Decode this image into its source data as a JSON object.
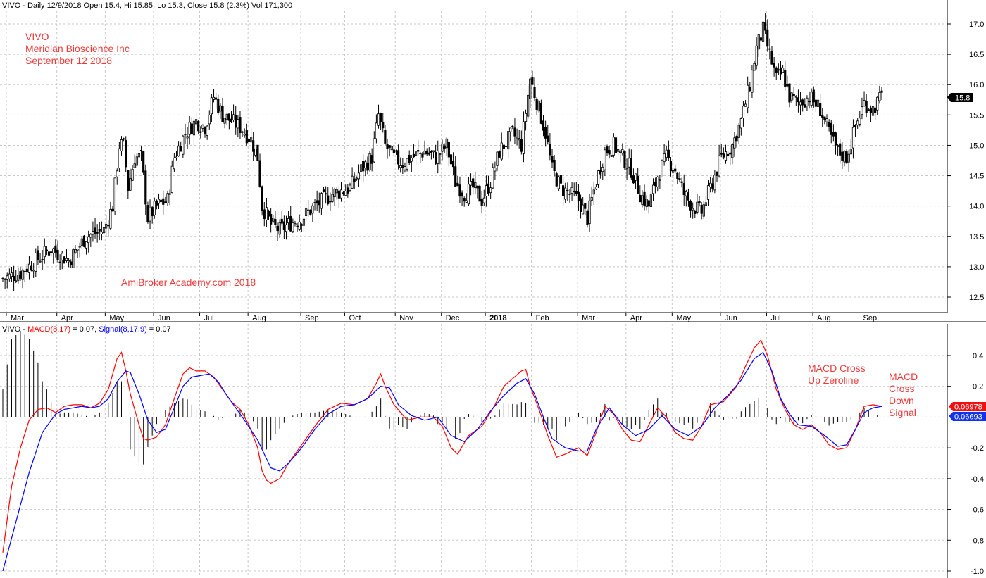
{
  "price_panel": {
    "header": "VIVO - Daily 12/9/2018 Open 15.4, Hi 15.85, Lo 15.3, Close 15.8 (2.3%) Vol 171,300",
    "annotations": {
      "ticker": "VIVO",
      "company": "Meridian Bioscience Inc",
      "date": "September 12 2018",
      "watermark": "AmiBroker Academy.com  2018"
    },
    "last_price_badge": "15.8"
  },
  "macd_panel": {
    "header_prefix": "VIVO - ",
    "macd_label": "MACD(8,17)",
    "macd_value": " = 0.07, ",
    "signal_label": "Signal(8,17,9)",
    "signal_value": " = 0.07",
    "annotations": {
      "cross_up_line1": "MACD Cross",
      "cross_up_line2": "Up Zeroline",
      "cross_down_line1": "MACD",
      "cross_down_line2": "Cross",
      "cross_down_line3": "Down",
      "cross_down_line4": "Signal"
    },
    "macd_badge": "0.06978",
    "signal_badge": "0.06693"
  },
  "colors": {
    "annotation": "#ee3a3a",
    "macd_line": "#ff0000",
    "signal_line": "#0000ff",
    "grid": "#c8c8c8",
    "candle": "#000000"
  },
  "chart_data": [
    {
      "type": "candlestick",
      "title": "VIVO - Daily 12/9/2018 Open 15.4, Hi 15.85, Lo 15.3, Close 15.8 (2.3%) Vol 171,300",
      "ylim": [
        12.2,
        17.2
      ],
      "y_ticks": [
        12.5,
        13.0,
        13.5,
        14.0,
        14.5,
        15.0,
        15.5,
        16.0,
        16.5,
        17.0
      ],
      "y_tick_labels": [
        "12.5",
        "13.0",
        "13.5",
        "14.0",
        "14.5",
        "15.0",
        "15.5",
        "16.0",
        "16.5",
        "17.0"
      ],
      "x_labels": [
        "Mar",
        "Apr",
        "May",
        "Jun",
        "Jul",
        "Aug",
        "Sep",
        "Oct",
        "Nov",
        "Dec",
        "2018",
        "Feb",
        "Mar",
        "Apr",
        "May",
        "Jun",
        "Jul",
        "Aug",
        "Sep"
      ],
      "x_label_bars": [
        8,
        31,
        53,
        75,
        96,
        118,
        142,
        162,
        185,
        206,
        226,
        247,
        268,
        290,
        311,
        333,
        354,
        375,
        396
      ],
      "close_path": [
        [
          0,
          12.8
        ],
        [
          8,
          12.9
        ],
        [
          15,
          13.1
        ],
        [
          22,
          13.3
        ],
        [
          30,
          13.1
        ],
        [
          38,
          13.5
        ],
        [
          46,
          13.6
        ],
        [
          50,
          14.0
        ],
        [
          53,
          15.0
        ],
        [
          55,
          15.0
        ],
        [
          57,
          14.3
        ],
        [
          60,
          14.8
        ],
        [
          63,
          14.8
        ],
        [
          66,
          13.8
        ],
        [
          70,
          14.0
        ],
        [
          75,
          14.1
        ],
        [
          78,
          14.8
        ],
        [
          83,
          15.2
        ],
        [
          88,
          15.4
        ],
        [
          92,
          15.3
        ],
        [
          96,
          15.8
        ],
        [
          100,
          15.5
        ],
        [
          104,
          15.4
        ],
        [
          108,
          15.3
        ],
        [
          113,
          15.1
        ],
        [
          116,
          14.8
        ],
        [
          118,
          14.0
        ],
        [
          122,
          13.7
        ],
        [
          126,
          13.6
        ],
        [
          130,
          13.7
        ],
        [
          136,
          13.8
        ],
        [
          142,
          14.0
        ],
        [
          150,
          14.2
        ],
        [
          158,
          14.3
        ],
        [
          163,
          14.6
        ],
        [
          168,
          14.8
        ],
        [
          171,
          15.5
        ],
        [
          174,
          15.0
        ],
        [
          178,
          14.8
        ],
        [
          182,
          14.7
        ],
        [
          186,
          14.8
        ],
        [
          192,
          14.9
        ],
        [
          197,
          14.8
        ],
        [
          202,
          15.0
        ],
        [
          206,
          14.4
        ],
        [
          210,
          14.2
        ],
        [
          214,
          14.3
        ],
        [
          218,
          14.1
        ],
        [
          222,
          14.4
        ],
        [
          226,
          14.9
        ],
        [
          232,
          15.2
        ],
        [
          236,
          15.0
        ],
        [
          240,
          16.1
        ],
        [
          244,
          15.6
        ],
        [
          247,
          15.2
        ],
        [
          250,
          14.6
        ],
        [
          254,
          14.3
        ],
        [
          258,
          14.2
        ],
        [
          262,
          14.1
        ],
        [
          266,
          13.8
        ],
        [
          270,
          14.4
        ],
        [
          274,
          14.9
        ],
        [
          278,
          15.0
        ],
        [
          282,
          14.8
        ],
        [
          286,
          14.6
        ],
        [
          290,
          14.2
        ],
        [
          294,
          14.0
        ],
        [
          298,
          14.5
        ],
        [
          302,
          14.8
        ],
        [
          306,
          14.6
        ],
        [
          310,
          14.2
        ],
        [
          314,
          14.0
        ],
        [
          318,
          13.9
        ],
        [
          323,
          14.4
        ],
        [
          327,
          14.8
        ],
        [
          332,
          15.0
        ],
        [
          336,
          15.4
        ],
        [
          340,
          16.0
        ],
        [
          343,
          16.6
        ],
        [
          346,
          16.9
        ],
        [
          349,
          16.5
        ],
        [
          352,
          16.1
        ],
        [
          355,
          16.2
        ],
        [
          358,
          15.8
        ],
        [
          362,
          15.7
        ],
        [
          367,
          15.8
        ],
        [
          372,
          15.6
        ],
        [
          376,
          15.2
        ],
        [
          380,
          14.9
        ],
        [
          384,
          14.8
        ],
        [
          388,
          15.3
        ],
        [
          392,
          15.7
        ],
        [
          396,
          15.6
        ],
        [
          400,
          15.8
        ]
      ]
    },
    {
      "type": "line",
      "title": "VIVO - MACD(8,17) = 0.07, Signal(8,17,9) = 0.07",
      "ylim": [
        -1.05,
        0.6
      ],
      "y_ticks": [
        -1.0,
        -0.8,
        -0.6,
        -0.4,
        -0.2,
        0.2,
        0.4
      ],
      "y_tick_labels": [
        "-1.0",
        "-0.8",
        "-0.6",
        "-0.4",
        "-0.2",
        "0.2",
        "0.4"
      ],
      "series": [
        {
          "name": "MACD(8,17)",
          "color": "#ff0000",
          "points": [
            [
              0,
              -0.88
            ],
            [
              4,
              -0.45
            ],
            [
              8,
              -0.2
            ],
            [
              12,
              -0.02
            ],
            [
              16,
              0.05
            ],
            [
              20,
              0.06
            ],
            [
              24,
              0.03
            ],
            [
              28,
              0.07
            ],
            [
              32,
              0.08
            ],
            [
              36,
              0.08
            ],
            [
              40,
              0.06
            ],
            [
              44,
              0.09
            ],
            [
              48,
              0.18
            ],
            [
              52,
              0.38
            ],
            [
              54,
              0.42
            ],
            [
              56,
              0.3
            ],
            [
              58,
              0.15
            ],
            [
              60,
              0.05
            ],
            [
              62,
              -0.05
            ],
            [
              64,
              -0.14
            ],
            [
              66,
              -0.15
            ],
            [
              70,
              -0.13
            ],
            [
              74,
              -0.05
            ],
            [
              78,
              0.12
            ],
            [
              82,
              0.28
            ],
            [
              85,
              0.32
            ],
            [
              88,
              0.3
            ],
            [
              92,
              0.3
            ],
            [
              96,
              0.26
            ],
            [
              100,
              0.18
            ],
            [
              104,
              0.1
            ],
            [
              108,
              0.05
            ],
            [
              112,
              -0.05
            ],
            [
              116,
              -0.2
            ],
            [
              118,
              -0.35
            ],
            [
              120,
              -0.41
            ],
            [
              122,
              -0.43
            ],
            [
              126,
              -0.4
            ],
            [
              130,
              -0.3
            ],
            [
              136,
              -0.18
            ],
            [
              142,
              -0.06
            ],
            [
              148,
              0.05
            ],
            [
              154,
              0.09
            ],
            [
              160,
              0.08
            ],
            [
              166,
              0.12
            ],
            [
              170,
              0.22
            ],
            [
              172,
              0.28
            ],
            [
              174,
              0.2
            ],
            [
              178,
              0.08
            ],
            [
              184,
              -0.02
            ],
            [
              190,
              0.0
            ],
            [
              196,
              0.0
            ],
            [
              200,
              -0.06
            ],
            [
              204,
              -0.2
            ],
            [
              207,
              -0.24
            ],
            [
              212,
              -0.12
            ],
            [
              218,
              -0.06
            ],
            [
              224,
              0.08
            ],
            [
              228,
              0.2
            ],
            [
              232,
              0.25
            ],
            [
              236,
              0.3
            ],
            [
              238,
              0.31
            ],
            [
              240,
              0.2
            ],
            [
              244,
              0.05
            ],
            [
              248,
              -0.12
            ],
            [
              252,
              -0.26
            ],
            [
              256,
              -0.24
            ],
            [
              262,
              -0.2
            ],
            [
              266,
              -0.25
            ],
            [
              270,
              -0.1
            ],
            [
              274,
              0.07
            ],
            [
              278,
              0.02
            ],
            [
              282,
              -0.08
            ],
            [
              286,
              -0.15
            ],
            [
              290,
              -0.16
            ],
            [
              294,
              -0.05
            ],
            [
              298,
              0.06
            ],
            [
              302,
              0.0
            ],
            [
              306,
              -0.1
            ],
            [
              310,
              -0.14
            ],
            [
              314,
              -0.15
            ],
            [
              318,
              -0.06
            ],
            [
              322,
              0.08
            ],
            [
              328,
              0.1
            ],
            [
              334,
              0.2
            ],
            [
              338,
              0.33
            ],
            [
              342,
              0.45
            ],
            [
              345,
              0.5
            ],
            [
              348,
              0.4
            ],
            [
              352,
              0.18
            ],
            [
              356,
              0.05
            ],
            [
              360,
              -0.05
            ],
            [
              364,
              -0.08
            ],
            [
              368,
              -0.05
            ],
            [
              372,
              -0.1
            ],
            [
              376,
              -0.18
            ],
            [
              380,
              -0.21
            ],
            [
              384,
              -0.2
            ],
            [
              388,
              -0.08
            ],
            [
              392,
              0.07
            ],
            [
              396,
              0.08
            ],
            [
              400,
              0.07
            ]
          ]
        },
        {
          "name": "Signal(8,17,9)",
          "color": "#0000ff",
          "points": [
            [
              0,
              -1.0
            ],
            [
              6,
              -0.68
            ],
            [
              12,
              -0.36
            ],
            [
              18,
              -0.1
            ],
            [
              24,
              0.02
            ],
            [
              28,
              0.05
            ],
            [
              32,
              0.06
            ],
            [
              36,
              0.07
            ],
            [
              40,
              0.06
            ],
            [
              44,
              0.07
            ],
            [
              48,
              0.12
            ],
            [
              52,
              0.23
            ],
            [
              56,
              0.3
            ],
            [
              58,
              0.29
            ],
            [
              62,
              0.15
            ],
            [
              66,
              -0.02
            ],
            [
              70,
              -0.1
            ],
            [
              74,
              -0.08
            ],
            [
              78,
              0.06
            ],
            [
              82,
              0.2
            ],
            [
              86,
              0.26
            ],
            [
              90,
              0.27
            ],
            [
              94,
              0.28
            ],
            [
              98,
              0.23
            ],
            [
              102,
              0.14
            ],
            [
              106,
              0.06
            ],
            [
              110,
              -0.02
            ],
            [
              116,
              -0.15
            ],
            [
              122,
              -0.33
            ],
            [
              126,
              -0.35
            ],
            [
              130,
              -0.3
            ],
            [
              136,
              -0.2
            ],
            [
              142,
              -0.08
            ],
            [
              148,
              0.02
            ],
            [
              154,
              0.07
            ],
            [
              160,
              0.08
            ],
            [
              166,
              0.12
            ],
            [
              172,
              0.2
            ],
            [
              176,
              0.19
            ],
            [
              180,
              0.08
            ],
            [
              186,
              0.01
            ],
            [
              192,
              -0.02
            ],
            [
              198,
              0.0
            ],
            [
              204,
              -0.12
            ],
            [
              210,
              -0.16
            ],
            [
              216,
              -0.08
            ],
            [
              222,
              0.04
            ],
            [
              228,
              0.14
            ],
            [
              234,
              0.22
            ],
            [
              238,
              0.25
            ],
            [
              242,
              0.15
            ],
            [
              246,
              0.0
            ],
            [
              250,
              -0.14
            ],
            [
              256,
              -0.2
            ],
            [
              262,
              -0.22
            ],
            [
              266,
              -0.22
            ],
            [
              270,
              -0.08
            ],
            [
              276,
              0.06
            ],
            [
              282,
              -0.05
            ],
            [
              288,
              -0.12
            ],
            [
              294,
              -0.08
            ],
            [
              300,
              0.01
            ],
            [
              306,
              -0.08
            ],
            [
              312,
              -0.12
            ],
            [
              318,
              -0.06
            ],
            [
              324,
              0.06
            ],
            [
              330,
              0.14
            ],
            [
              336,
              0.24
            ],
            [
              342,
              0.38
            ],
            [
              346,
              0.42
            ],
            [
              350,
              0.3
            ],
            [
              354,
              0.12
            ],
            [
              358,
              0.02
            ],
            [
              362,
              -0.05
            ],
            [
              368,
              -0.06
            ],
            [
              374,
              -0.12
            ],
            [
              380,
              -0.19
            ],
            [
              384,
              -0.18
            ],
            [
              388,
              -0.08
            ],
            [
              392,
              0.03
            ],
            [
              396,
              0.06
            ],
            [
              400,
              0.07
            ]
          ]
        }
      ],
      "histogram": "MACD minus Signal"
    }
  ]
}
